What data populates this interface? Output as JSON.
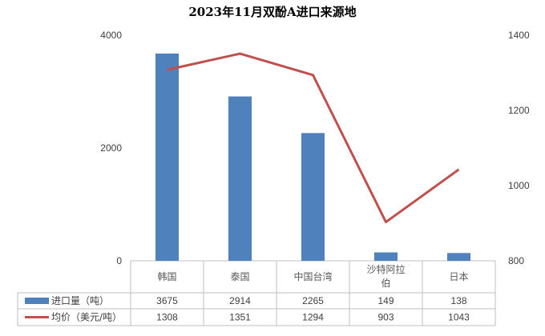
{
  "chart_data": {
    "type": "bar",
    "title": "2023年11月双酚A进口来源地",
    "categories": [
      [
        "韩国"
      ],
      [
        "泰国"
      ],
      [
        "中国台湾"
      ],
      [
        "沙特阿拉",
        "伯"
      ],
      [
        "日本"
      ]
    ],
    "series": [
      {
        "name": "进口量（吨）",
        "type": "bar",
        "axis": "left",
        "color": "#4F81BD",
        "values": [
          3675,
          2914,
          2265,
          149,
          138
        ]
      },
      {
        "name": "均价（美元/吨）",
        "type": "line",
        "axis": "right",
        "color": "#C0504D",
        "values": [
          1308,
          1351,
          1294,
          903,
          1043
        ]
      }
    ],
    "y_left": {
      "ylim": [
        0,
        4000
      ],
      "ticks": [
        "0",
        "2000",
        "4000"
      ]
    },
    "y_right": {
      "ylim": [
        800,
        1400
      ],
      "ticks": [
        "800",
        "1000",
        "1200",
        "1400"
      ]
    },
    "grid": false,
    "legend": "data-table"
  }
}
